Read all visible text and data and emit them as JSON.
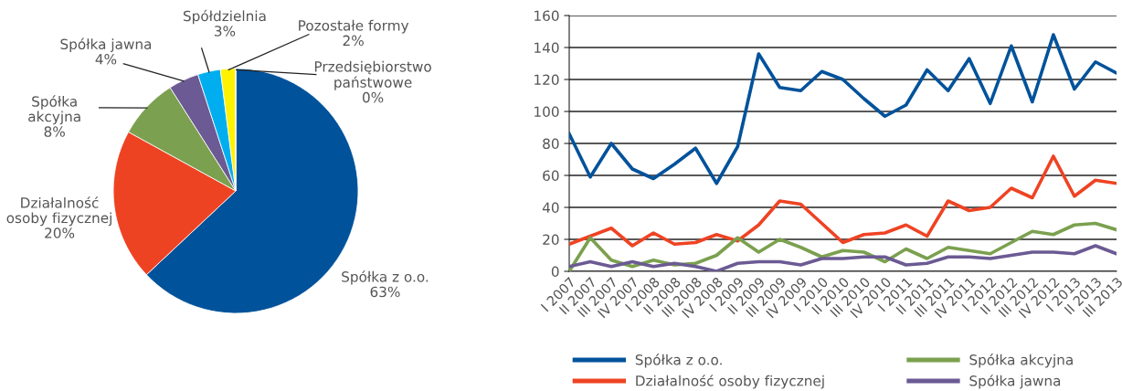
{
  "chart_data": [
    {
      "type": "pie",
      "categories": [
        "Spółka z o.o.",
        "Działalność\nosoby fizycznej",
        "Spółka\nakcyjna",
        "Spółka jawna",
        "Spółdzielnia",
        "Pozostałe formy",
        "Przedsiębiorstwo\npaństwowe"
      ],
      "values": [
        63,
        20,
        8,
        4,
        3,
        2,
        0
      ],
      "value_labels": [
        "63%",
        "20%",
        "8%",
        "4%",
        "3%",
        "2%",
        "0%"
      ],
      "colors": [
        "#00529b",
        "#ee4323",
        "#7ba04f",
        "#6b5a93",
        "#00aeef",
        "#fff200",
        "#c0c0c0"
      ]
    },
    {
      "type": "line",
      "categories": [
        "I 2007",
        "II 2007",
        "III 2007",
        "IV 2007",
        "I 2008",
        "II 2008",
        "III 2008",
        "IV 2008",
        "I 2009",
        "II 2009",
        "III 2009",
        "IV 2009",
        "I 2010",
        "II 2010",
        "III 2010",
        "IV 2010",
        "I 2011",
        "II 2011",
        "III 2011",
        "IV 2011",
        "I 2012",
        "II 2012",
        "III 2012",
        "IV 2012",
        "I 2013",
        "II 2013",
        "III 2013"
      ],
      "series": [
        {
          "name": "Spółka z o.o.",
          "color": "#00529b",
          "values": [
            86,
            59,
            80,
            64,
            58,
            67,
            77,
            55,
            78,
            136,
            115,
            113,
            125,
            120,
            108,
            97,
            104,
            126,
            113,
            133,
            105,
            141,
            106,
            148,
            114,
            131,
            124
          ]
        },
        {
          "name": "Działalność osoby fizycznej",
          "color": "#ee4323",
          "values": [
            17,
            22,
            27,
            16,
            24,
            17,
            18,
            23,
            19,
            29,
            44,
            42,
            30,
            18,
            23,
            24,
            29,
            22,
            44,
            38,
            40,
            52,
            46,
            72,
            47,
            57,
            55
          ]
        },
        {
          "name": "Spółka akcyjna",
          "color": "#7ba04f",
          "values": [
            0,
            21,
            7,
            3,
            7,
            4,
            5,
            10,
            21,
            12,
            20,
            15,
            9,
            13,
            12,
            6,
            14,
            8,
            15,
            13,
            11,
            18,
            25,
            23,
            29,
            30,
            26
          ]
        },
        {
          "name": "Spółka jawna",
          "color": "#6b5a93",
          "values": [
            3,
            6,
            3,
            6,
            3,
            5,
            3,
            0,
            5,
            6,
            6,
            4,
            8,
            8,
            9,
            9,
            4,
            5,
            9,
            9,
            8,
            10,
            12,
            12,
            11,
            16,
            11
          ]
        }
      ],
      "ylim": [
        0,
        160
      ],
      "yticks": [
        0,
        20,
        40,
        60,
        80,
        100,
        120,
        140,
        160
      ],
      "grid": "y",
      "legend": "bottom",
      "marker": "none",
      "line_style": "solid"
    }
  ]
}
